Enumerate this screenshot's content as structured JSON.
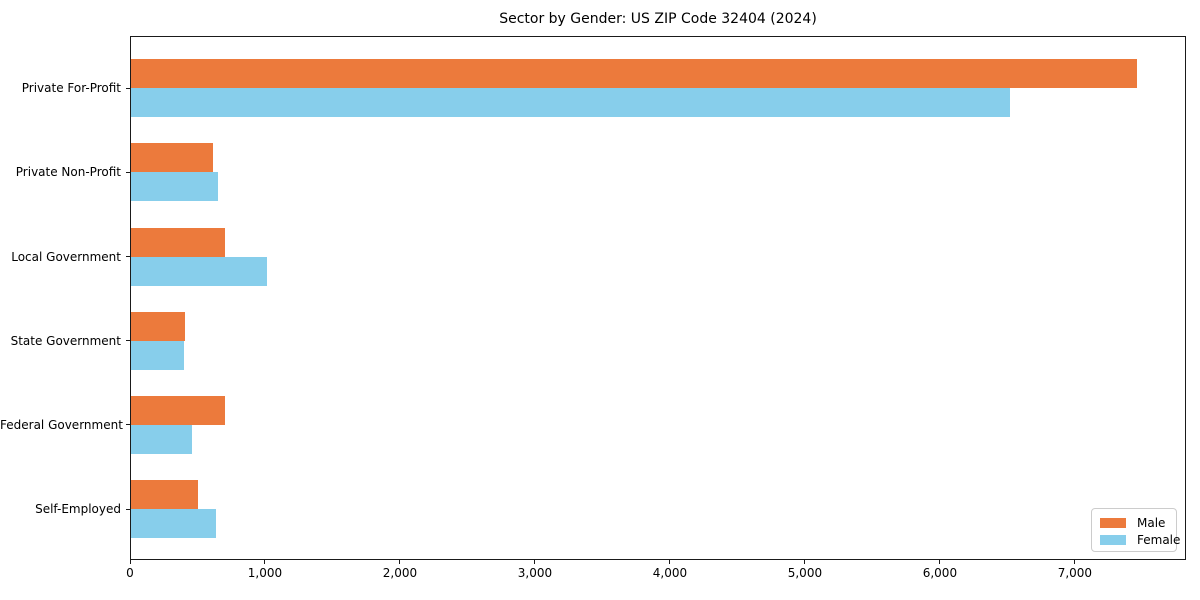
{
  "chart_data": {
    "type": "bar",
    "orientation": "horizontal",
    "title": "Sector by Gender: US ZIP Code 32404 (2024)",
    "categories": [
      "Private For-Profit",
      "Private Non-Profit",
      "Local Government",
      "State Government",
      "Federal Government",
      "Self-Employed"
    ],
    "series": [
      {
        "name": "Male",
        "color": "#ec7a3c",
        "values": [
          7450,
          605,
          695,
          400,
          700,
          500
        ]
      },
      {
        "name": "Female",
        "color": "#87ceeb",
        "values": [
          6510,
          645,
          1005,
          390,
          450,
          630
        ]
      }
    ],
    "xlabel": "",
    "ylabel": "",
    "xlim": [
      0,
      7823
    ],
    "x_ticks": [
      0,
      1000,
      2000,
      3000,
      4000,
      5000,
      6000,
      7000
    ],
    "x_tick_labels": [
      "0",
      "1,000",
      "2,000",
      "3,000",
      "4,000",
      "5,000",
      "6,000",
      "7,000"
    ],
    "grid": false,
    "legend": {
      "position": "lower-right"
    },
    "axis_color": "#1a1a1a",
    "text_color": "#000000",
    "background_color": "#ffffff"
  }
}
